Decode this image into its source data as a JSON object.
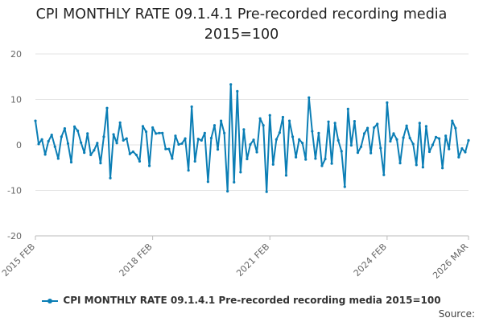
{
  "chart_data": {
    "type": "line",
    "title": "CPI MONTHLY RATE 09.1.4.1 Pre-recorded recording media 2015=100",
    "xlabel": "",
    "ylabel": "",
    "ylim": [
      -20,
      20
    ],
    "yticks": [
      "20",
      "10",
      "0",
      "-10",
      "-20"
    ],
    "xticks": [
      "2015 FEB",
      "2018 FEB",
      "2021 FEB",
      "2024 FEB",
      "2026 MAR"
    ],
    "x_start": "2015 FEB",
    "x_end": "2026 MAR",
    "grid": true,
    "legend_position": "bottom",
    "color": "#0b7eb5",
    "series": [
      {
        "name": "CPI MONTHLY RATE 09.1.4.1 Pre-recorded recording media 2015=100",
        "values": [
          5.3,
          0.2,
          1.2,
          -2.1,
          0.8,
          2.2,
          -0.4,
          -3.0,
          1.8,
          3.6,
          0.3,
          -3.8,
          4.0,
          3.1,
          0.5,
          -1.7,
          2.5,
          -2.2,
          -1.2,
          0.4,
          -4.0,
          1.8,
          8.1,
          -7.3,
          2.3,
          0.4,
          4.9,
          1.0,
          1.4,
          -2.0,
          -1.5,
          -2.2,
          -3.6,
          4.1,
          2.9,
          -4.6,
          3.8,
          2.5,
          2.6,
          2.6,
          -0.9,
          -0.9,
          -3.0,
          2.0,
          0.1,
          0.3,
          1.4,
          -5.6,
          8.4,
          -3.6,
          1.3,
          1.0,
          2.6,
          -8.1,
          1.5,
          4.3,
          -1.0,
          5.3,
          2.6,
          -10.2,
          13.3,
          -8.2,
          11.8,
          -6.0,
          3.4,
          -3.1,
          0.1,
          1.1,
          -1.6,
          5.8,
          4.3,
          -10.3,
          6.5,
          -4.3,
          1.2,
          2.7,
          6.1,
          -6.7,
          5.3,
          1.8,
          -2.7,
          1.2,
          0.4,
          -3.2,
          10.4,
          3.0,
          -3.0,
          2.6,
          -4.6,
          -3.1,
          5.1,
          -4.1,
          4.8,
          1.0,
          -1.4,
          -9.2,
          7.9,
          -0.1,
          5.2,
          -1.7,
          -0.4,
          2.5,
          3.7,
          -1.8,
          3.8,
          4.6,
          -0.7,
          -6.6,
          9.3,
          0.8,
          2.5,
          1.2,
          -4.0,
          1.6,
          4.2,
          1.5,
          0.2,
          -4.4,
          4.8,
          -4.9,
          4.1,
          -1.5,
          0.0,
          1.7,
          1.4,
          -5.1,
          2.0,
          -0.9,
          5.3,
          3.7,
          -2.7,
          -0.8,
          -1.6,
          1.0
        ]
      }
    ]
  },
  "source_label": "Source:"
}
